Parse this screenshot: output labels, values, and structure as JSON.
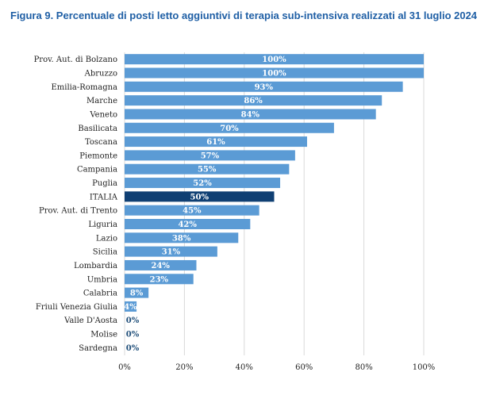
{
  "title": "Figura 9. Percentuale di posti letto aggiuntivi di terapia sub-intensiva realizzati al 31 luglio 2024",
  "chart_data": {
    "type": "bar",
    "orientation": "horizontal",
    "title": "Figura 9. Percentuale di posti letto aggiuntivi di terapia sub-intensiva realizzati al 31 luglio 2024",
    "xlabel": "",
    "ylabel": "",
    "xlim": [
      0,
      100
    ],
    "xticks": [
      "0%",
      "20%",
      "40%",
      "60%",
      "80%",
      "100%"
    ],
    "grid": "vertical",
    "legend": "none",
    "colors": {
      "bar": "#5b9bd5",
      "highlight": "#0f3f73",
      "label_inside": "#ffffff",
      "label_outside": "#1f4e79",
      "grid": "#d9d9d9"
    },
    "highlight_category": "ITALIA",
    "categories": [
      "Prov. Aut. di Bolzano",
      "Abruzzo",
      "Emilia-Romagna",
      "Marche",
      "Veneto",
      "Basilicata",
      "Toscana",
      "Piemonte",
      "Campania",
      "Puglia",
      "ITALIA",
      "Prov. Aut. di Trento",
      "Liguria",
      "Lazio",
      "Sicilia",
      "Lombardia",
      "Umbria",
      "Calabria",
      "Friuli Venezia Giulia",
      "Valle D'Aosta",
      "Molise",
      "Sardegna"
    ],
    "values": [
      100,
      100,
      93,
      86,
      84,
      70,
      61,
      57,
      55,
      52,
      50,
      45,
      42,
      38,
      31,
      24,
      23,
      8,
      4,
      0,
      0,
      0
    ],
    "data_labels": [
      "100%",
      "100%",
      "93%",
      "86%",
      "84%",
      "70%",
      "61%",
      "57%",
      "55%",
      "52%",
      "50%",
      "45%",
      "42%",
      "38%",
      "31%",
      "24%",
      "23%",
      "8%",
      "4%",
      "0%",
      "0%",
      "0%"
    ]
  }
}
